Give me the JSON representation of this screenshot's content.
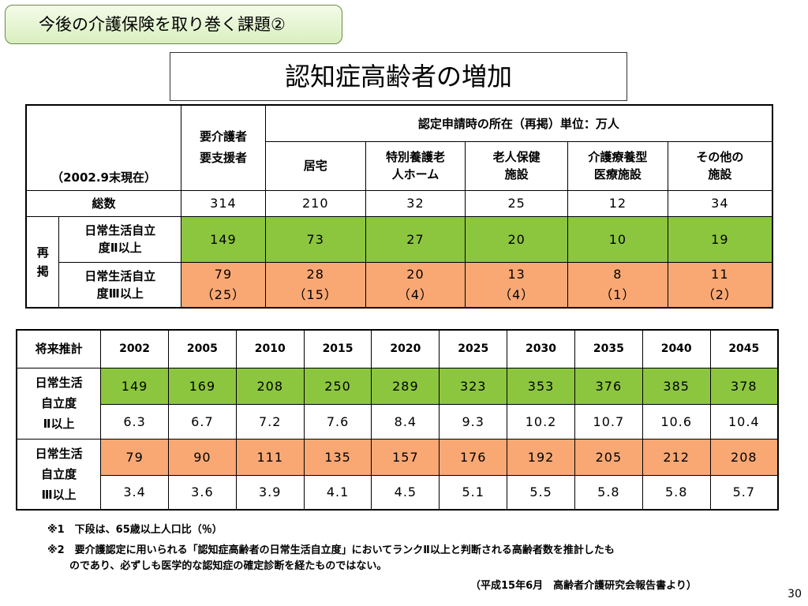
{
  "header": "今後の介護保険を取り巻く課題②",
  "title": "認知症高齢者の増加",
  "t1": {
    "date_label": "（2002.9末現在）",
    "col_total_l1": "要介護者",
    "col_total_l2": "要支援者",
    "group_header": "認定申請時の所在（再掲）単位：万人",
    "cols": [
      {
        "l1": "居宅",
        "l2": ""
      },
      {
        "l1": "特別養護老",
        "l2": "人ホーム"
      },
      {
        "l1": "老人保健",
        "l2": "施設"
      },
      {
        "l1": "介護療養型",
        "l2": "医療施設"
      },
      {
        "l1": "その他の",
        "l2": "施設"
      }
    ],
    "total_label": "総数",
    "total_values": [
      "314",
      "210",
      "32",
      "25",
      "12",
      "34"
    ],
    "sub_label_l1": "再",
    "sub_label_l2": "掲",
    "row2_label_l1": "日常生活自立",
    "row2_label_l2": "度Ⅱ以上",
    "row2_values": [
      "149",
      "73",
      "27",
      "20",
      "10",
      "19"
    ],
    "row3_label_l1": "日常生活自立",
    "row3_label_l2": "度Ⅲ以上",
    "row3_values": [
      "79",
      "28",
      "20",
      "13",
      "8",
      "11"
    ],
    "row3_sub": [
      "（25）",
      "（15）",
      "（4）",
      "（4）",
      "（1）",
      "（2）"
    ]
  },
  "t2": {
    "corner": "将来推計",
    "years": [
      "2002",
      "2005",
      "2010",
      "2015",
      "2020",
      "2025",
      "2030",
      "2035",
      "2040",
      "2045"
    ],
    "g1_label": [
      "日常生活",
      "自立度",
      "Ⅱ以上"
    ],
    "g1_values": [
      "149",
      "169",
      "208",
      "250",
      "289",
      "323",
      "353",
      "376",
      "385",
      "378"
    ],
    "g1_ratio": [
      "6.3",
      "6.7",
      "7.2",
      "7.6",
      "8.4",
      "9.3",
      "10.2",
      "10.7",
      "10.6",
      "10.4"
    ],
    "g2_label": [
      "日常生活",
      "自立度",
      "Ⅲ以上"
    ],
    "g2_values": [
      "79",
      "90",
      "111",
      "135",
      "157",
      "176",
      "192",
      "205",
      "212",
      "208"
    ],
    "g2_ratio": [
      "3.4",
      "3.6",
      "3.9",
      "4.1",
      "4.5",
      "5.1",
      "5.5",
      "5.8",
      "5.8",
      "5.7"
    ]
  },
  "notes": {
    "n1": "※1　下段は、65歳以上人口比（％）",
    "n2a": "※2　要介護認定に用いられる「認知症高齢者の日常生活自立度」においてランクⅡ以上と判断される高齢者数を推計したも",
    "n2b": "のであり、必ずしも医学的な認知症の確定診断を経たものではない。",
    "source": "（平成15年6月　高齢者介護研究会報告書より）"
  },
  "page_number": "30"
}
